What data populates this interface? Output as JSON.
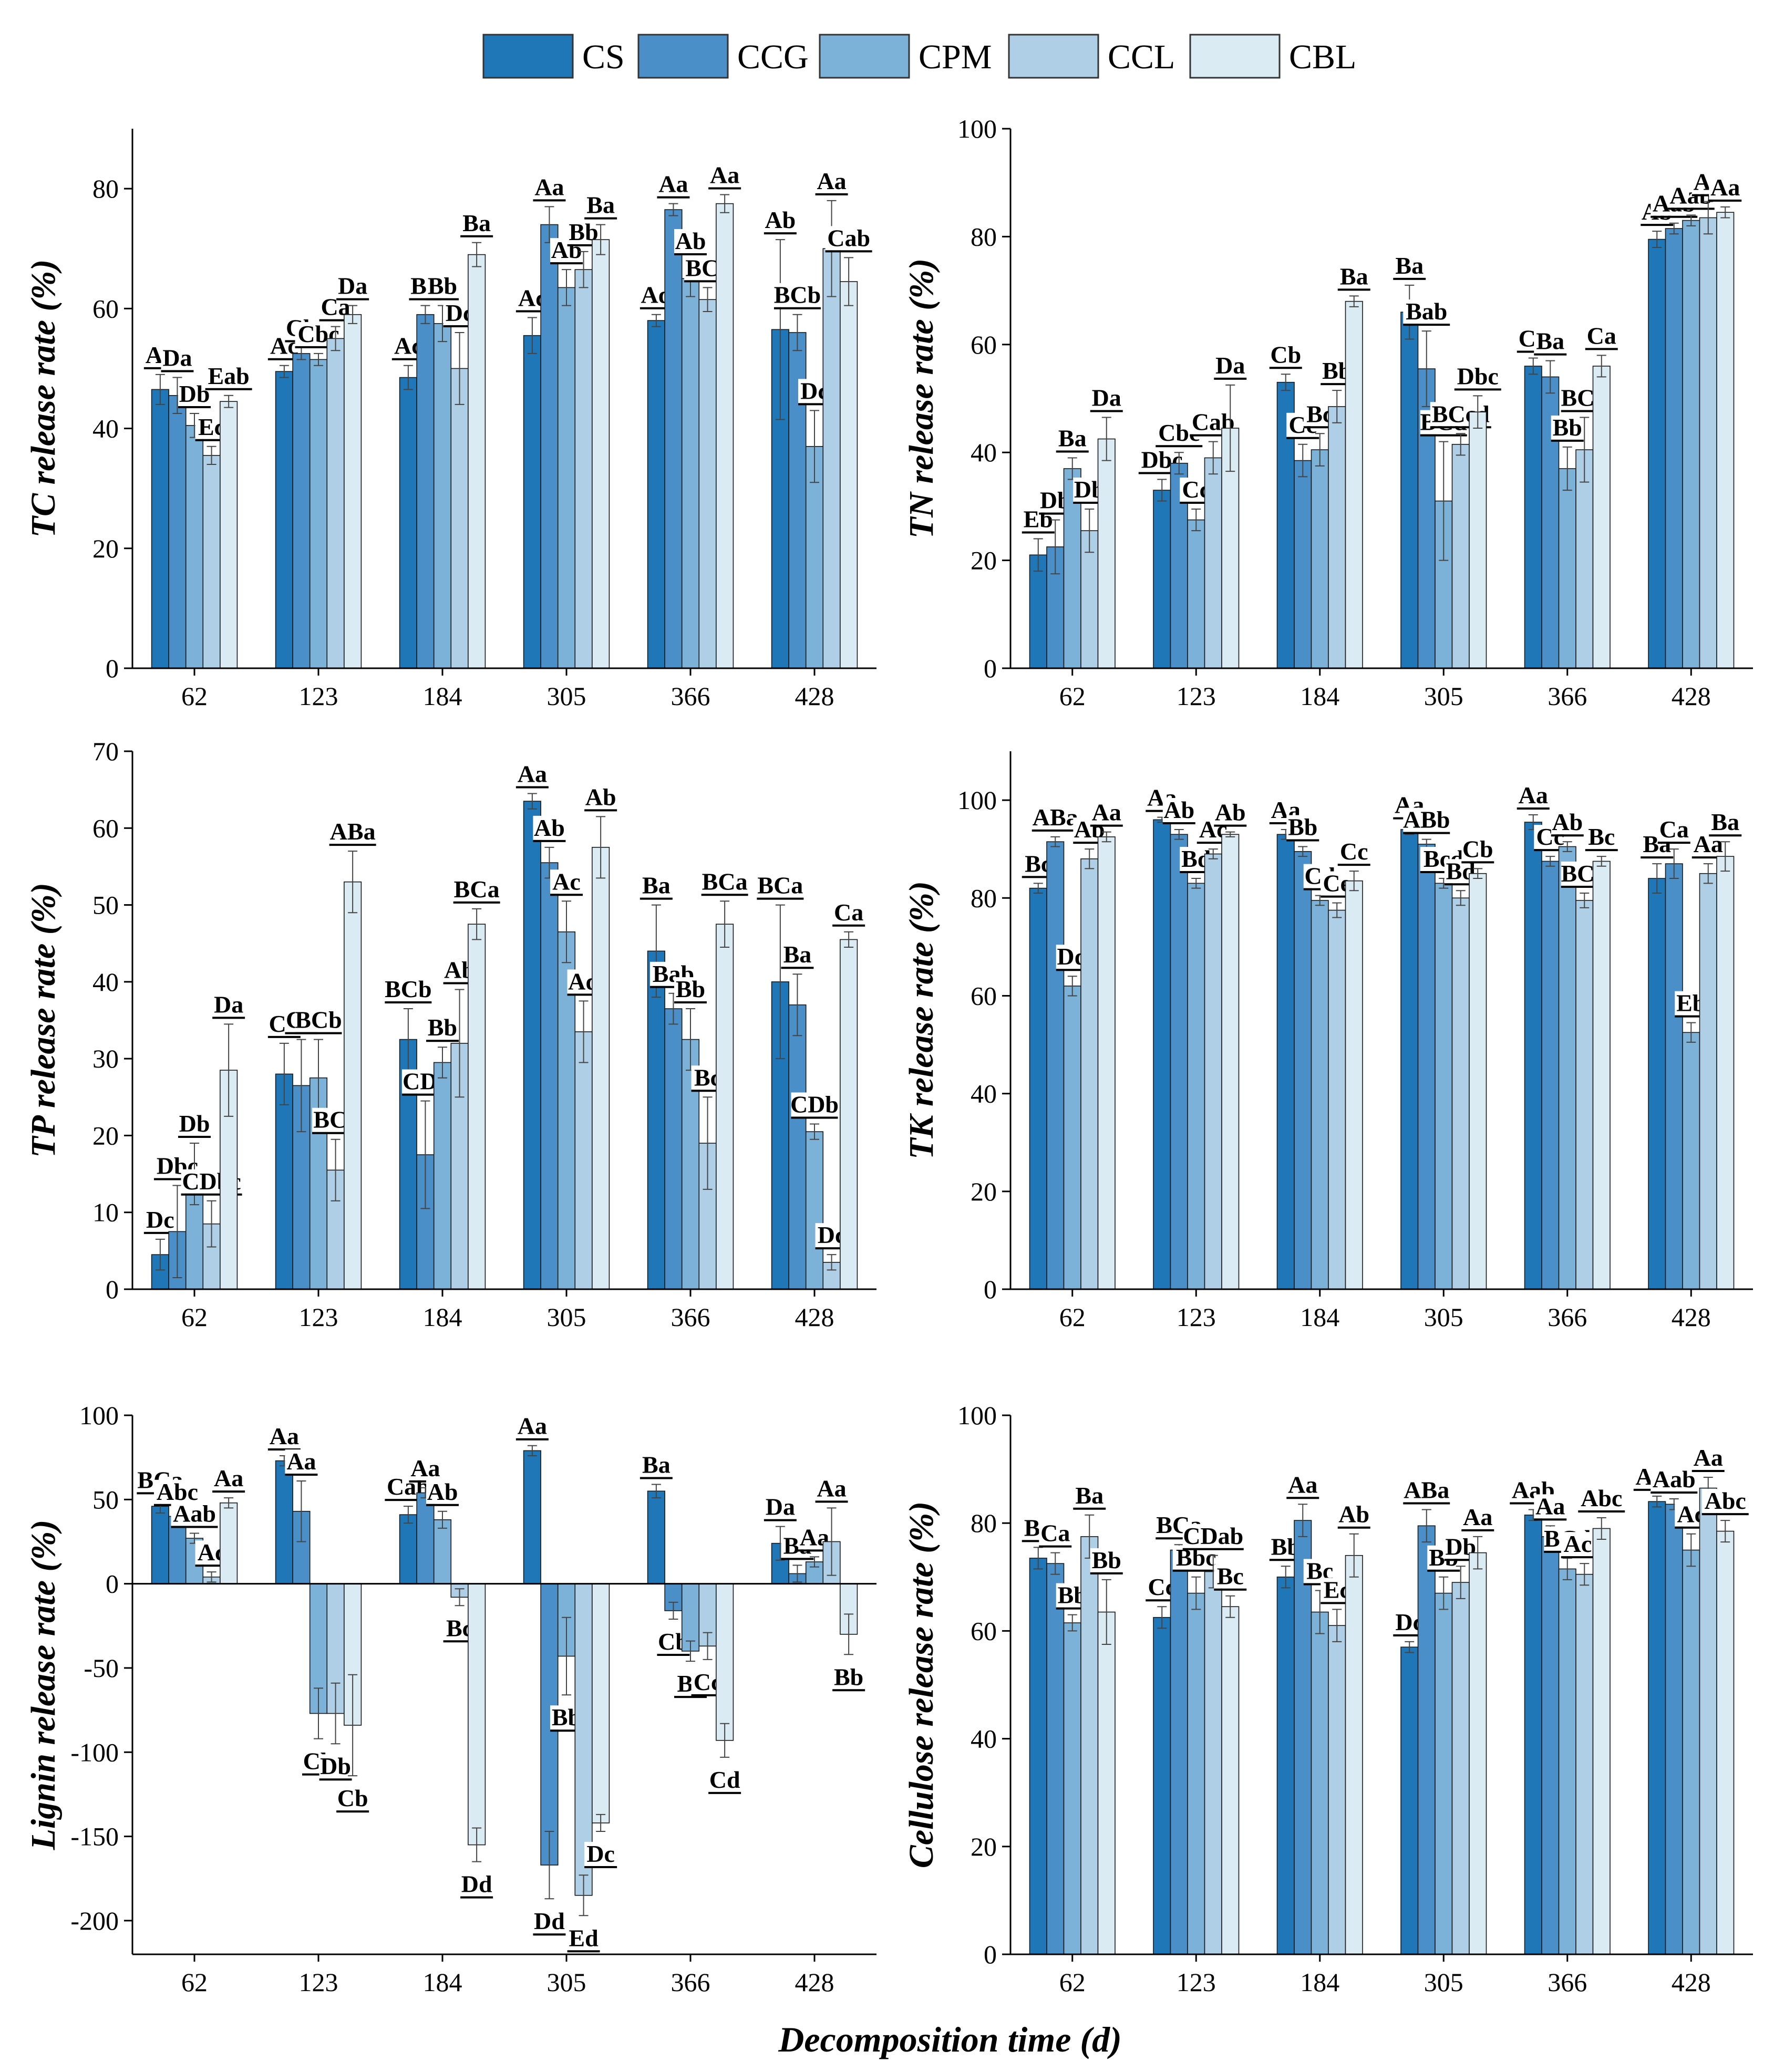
{
  "colors": [
    "#1f77b8",
    "#4b8fc8",
    "#7db2d8",
    "#aecfe6",
    "#dbebf4"
  ],
  "legend": [
    "CS",
    "CCG",
    "CPM",
    "CCL",
    "CBL"
  ],
  "xlabel": "Decomposition time (d)",
  "chart_data": [
    {
      "type": "bar",
      "ylabel": "TC release rate (%)",
      "categories": [
        "62",
        "123",
        "184",
        "305",
        "366",
        "428"
      ],
      "ylim": [
        0,
        90
      ],
      "yticks": [
        0,
        20,
        40,
        60,
        80
      ],
      "series": [
        {
          "name": "CS",
          "values": [
            46.5,
            49.5,
            48.5,
            55.5,
            58,
            56.5
          ],
          "errors": [
            2.5,
            1,
            2,
            3,
            1,
            15
          ],
          "letters": [
            "Aa",
            "Ac",
            "Ac",
            "Ac",
            "Ad",
            "Ab"
          ]
        },
        {
          "name": "CCG",
          "values": [
            45.5,
            52.5,
            59,
            74,
            76.5,
            56
          ],
          "errors": [
            3,
            1,
            1.5,
            3,
            1,
            3
          ],
          "letters": [
            "Da",
            "Cb",
            "Bb",
            "Aa",
            "Aa",
            "BCb"
          ]
        },
        {
          "name": "CPM",
          "values": [
            40.5,
            51.5,
            57.5,
            63.5,
            65,
            37
          ],
          "errors": [
            2,
            1,
            3,
            3,
            3,
            6
          ],
          "letters": [
            "Db",
            "Cbc",
            "Bb",
            "Ab",
            "Ab",
            "Dc"
          ]
        },
        {
          "name": "CCL",
          "values": [
            35.5,
            55,
            50,
            66.5,
            61.5,
            70
          ],
          "errors": [
            1.5,
            2,
            6,
            3,
            2,
            8
          ],
          "letters": [
            "Ec",
            "Ca",
            "Dc",
            "Bb",
            "BCc",
            "Aa"
          ]
        },
        {
          "name": "CBL",
          "values": [
            44.5,
            59,
            69,
            71.5,
            77.5,
            64.5
          ],
          "errors": [
            1,
            1.5,
            2,
            2.5,
            1.5,
            4
          ],
          "letters": [
            "Eab",
            "Da",
            "Ba",
            "Ba",
            "Aa",
            "Cab"
          ]
        }
      ]
    },
    {
      "type": "bar",
      "ylabel": "TN release rate (%)",
      "categories": [
        "62",
        "123",
        "184",
        "305",
        "366",
        "428"
      ],
      "ylim": [
        0,
        100
      ],
      "yticks": [
        0,
        20,
        40,
        60,
        80,
        100
      ],
      "series": [
        {
          "name": "CS",
          "values": [
            21,
            33,
            53,
            66,
            56,
            79.5
          ],
          "errors": [
            3,
            2,
            1.5,
            5,
            1.5,
            1.5
          ],
          "letters": [
            "Eb",
            "Dbc",
            "Cb",
            "Ba",
            "Ca",
            "Ab"
          ]
        },
        {
          "name": "CCG",
          "values": [
            22.5,
            38,
            38.5,
            55.5,
            54,
            81.5
          ],
          "errors": [
            5,
            2,
            3,
            7,
            3,
            1
          ],
          "letters": [
            "Db",
            "Cbc",
            "Cc",
            "Bab",
            "Ba",
            "Aab"
          ]
        },
        {
          "name": "CPM",
          "values": [
            37,
            27.5,
            40.5,
            31,
            37,
            83
          ],
          "errors": [
            2,
            2,
            3,
            11,
            4,
            1
          ],
          "letters": [
            "Ba",
            "Cc",
            "Bc",
            "BCd",
            "Bb",
            "Aab"
          ]
        },
        {
          "name": "CCL",
          "values": [
            25.5,
            39,
            48.5,
            41.5,
            40.5,
            83.5
          ],
          "errors": [
            4,
            3,
            3,
            2,
            6,
            3
          ],
          "letters": [
            "Db",
            "Cab",
            "Bb",
            "BCcd",
            "BCb",
            "Aa"
          ]
        },
        {
          "name": "CBL",
          "values": [
            42.5,
            44.5,
            68,
            47.5,
            56,
            84.5
          ],
          "errors": [
            4,
            8,
            1,
            3,
            2,
            1
          ],
          "letters": [
            "Da",
            "Da",
            "Ba",
            "Dbc",
            "Ca",
            "Aa"
          ]
        }
      ]
    },
    {
      "type": "bar",
      "ylabel": "TP release rate (%)",
      "categories": [
        "62",
        "123",
        "184",
        "305",
        "366",
        "428"
      ],
      "ylim": [
        0,
        70
      ],
      "yticks": [
        0,
        10,
        20,
        30,
        40,
        50,
        60,
        70
      ],
      "series": [
        {
          "name": "CS",
          "values": [
            4.5,
            28,
            32.5,
            63.5,
            44,
            40
          ],
          "errors": [
            2,
            4,
            4,
            1,
            6,
            10
          ],
          "letters": [
            "Dc",
            "Cb",
            "BCb",
            "Aa",
            "Ba",
            "BCa"
          ]
        },
        {
          "name": "CCG",
          "values": [
            7.5,
            26.5,
            17.5,
            55.5,
            36.5,
            37
          ],
          "errors": [
            6,
            6,
            7,
            2,
            2,
            4
          ],
          "letters": [
            "Dbc",
            "Cb",
            "CDc",
            "Ab",
            "Bab",
            "Ba"
          ]
        },
        {
          "name": "CPM",
          "values": [
            15,
            27.5,
            29.5,
            46.5,
            32.5,
            20.5
          ],
          "errors": [
            4,
            5,
            2,
            4,
            4,
            1
          ],
          "letters": [
            "Db",
            "BCb",
            "Bb",
            "Ac",
            "Bb",
            "CDb"
          ]
        },
        {
          "name": "CCL",
          "values": [
            8.5,
            15.5,
            32,
            33.5,
            19,
            3.5
          ],
          "errors": [
            3,
            4,
            7,
            4,
            6,
            1
          ],
          "letters": [
            "CDbc",
            "BCc",
            "Ab",
            "Ad",
            "Bc",
            "Dc"
          ]
        },
        {
          "name": "CBL",
          "values": [
            28.5,
            53,
            47.5,
            57.5,
            47.5,
            45.5
          ],
          "errors": [
            6,
            4,
            2,
            4,
            3,
            1
          ],
          "letters": [
            "Da",
            "ABa",
            "BCa",
            "Ab",
            "BCa",
            "Ca"
          ]
        }
      ]
    },
    {
      "type": "bar",
      "ylabel": "TK release rate (%)",
      "categories": [
        "62",
        "123",
        "184",
        "305",
        "366",
        "428"
      ],
      "ylim": [
        0,
        110
      ],
      "yticks": [
        0,
        20,
        40,
        60,
        80,
        100
      ],
      "series": [
        {
          "name": "CS",
          "values": [
            82,
            96,
            93,
            94,
            95.5,
            84
          ],
          "errors": [
            1,
            0.5,
            1,
            1,
            1.5,
            3
          ],
          "letters": [
            "Bc",
            "Aa",
            "Aa",
            "Aa",
            "Aa",
            "Ba"
          ]
        },
        {
          "name": "CCG",
          "values": [
            91.5,
            93,
            89.5,
            91,
            87.5,
            87
          ],
          "errors": [
            1,
            1,
            1,
            1,
            1,
            3
          ],
          "letters": [
            "ABa",
            "Ab",
            "Bb",
            "ABb",
            "Cc",
            "Ca"
          ]
        },
        {
          "name": "CPM",
          "values": [
            62,
            83,
            79.5,
            83,
            90.5,
            52.5
          ],
          "errors": [
            2,
            1,
            1,
            1,
            1,
            2
          ],
          "letters": [
            "Dd",
            "Bd",
            "Cd",
            "Bcd",
            "Ab",
            "Eb"
          ]
        },
        {
          "name": "CCL",
          "values": [
            88,
            89,
            77.5,
            80,
            79.5,
            85
          ],
          "errors": [
            2,
            1,
            1.5,
            1.5,
            1.5,
            2
          ],
          "letters": [
            "Ab",
            "Ac",
            "Ce",
            "Bd",
            "BCd",
            "Aa"
          ]
        },
        {
          "name": "CBL",
          "values": [
            92.5,
            93,
            83.5,
            85,
            87.5,
            88.5
          ],
          "errors": [
            1,
            0.5,
            2,
            1,
            1,
            3
          ],
          "letters": [
            "Aa",
            "Ab",
            "Cc",
            "Cb",
            "Bc",
            "Ba"
          ]
        }
      ]
    },
    {
      "type": "bar",
      "ylabel": "Lignin release rate (%)",
      "categories": [
        "62",
        "123",
        "184",
        "305",
        "366",
        "428"
      ],
      "ylim": [
        -220,
        100
      ],
      "yticks": [
        -200,
        -150,
        -100,
        -50,
        0,
        50,
        100
      ],
      "series": [
        {
          "name": "CS",
          "values": [
            46,
            73,
            41,
            79,
            55,
            24
          ],
          "errors": [
            4,
            3,
            5,
            3,
            4,
            10
          ],
          "letters": [
            "BCa",
            "Aa",
            "Cab",
            "Aa",
            "Ba",
            "Da"
          ]
        },
        {
          "name": "CCG",
          "values": [
            40,
            43,
            54,
            -167,
            -16,
            6
          ],
          "errors": [
            3,
            18,
            3,
            20,
            5,
            5
          ],
          "letters": [
            "Abc",
            "Aa",
            "Aa",
            "Dd",
            "Cb",
            "Ba"
          ]
        },
        {
          "name": "CPM",
          "values": [
            27,
            -77,
            38,
            -43,
            -40,
            13
          ],
          "errors": [
            3,
            15,
            5,
            23,
            6,
            3
          ],
          "letters": [
            "Aab",
            "Cb",
            "Ab",
            "Bb",
            "Bc",
            "Aa"
          ]
        },
        {
          "name": "CCL",
          "values": [
            4,
            -77,
            -8,
            -185,
            -37,
            25
          ],
          "errors": [
            3,
            18,
            5,
            12,
            8,
            20
          ],
          "letters": [
            "Ac",
            "Db",
            "Bc",
            "Ed",
            "Cc",
            "Aa"
          ]
        },
        {
          "name": "CBL",
          "values": [
            48,
            -84,
            -155,
            -142,
            -93,
            -30
          ],
          "errors": [
            3,
            30,
            10,
            5,
            10,
            12
          ],
          "letters": [
            "Aa",
            "Cb",
            "Dd",
            "Dc",
            "Cd",
            "Bb"
          ]
        }
      ]
    },
    {
      "type": "bar",
      "ylabel": "Cellulose release rate (%)",
      "categories": [
        "62",
        "123",
        "184",
        "305",
        "366",
        "428"
      ],
      "ylim": [
        0,
        100
      ],
      "yticks": [
        0,
        20,
        40,
        60,
        80,
        100
      ],
      "series": [
        {
          "name": "CS",
          "values": [
            73.5,
            62.5,
            70,
            57,
            81.5,
            84
          ],
          "errors": [
            2,
            2,
            2,
            1,
            1,
            1
          ],
          "letters": [
            "Ba",
            "Cc",
            "Bb",
            "Dc",
            "Aab",
            "Aab"
          ]
        },
        {
          "name": "CCG",
          "values": [
            72.5,
            75,
            80.5,
            79.5,
            77.5,
            83.5
          ],
          "errors": [
            2,
            1,
            3,
            3,
            2,
            1
          ],
          "letters": [
            "Ca",
            "BCa",
            "Aa",
            "ABa",
            "Aa",
            "Aab"
          ]
        },
        {
          "name": "CPM",
          "values": [
            61.5,
            67,
            63.5,
            67,
            71.5,
            75
          ],
          "errors": [
            1.5,
            3,
            4,
            3,
            2,
            3
          ],
          "letters": [
            "Bb",
            "Bbc",
            "Bc",
            "Bb",
            "BCd",
            "Ac"
          ]
        },
        {
          "name": "CCL",
          "values": [
            77.5,
            71,
            61,
            69,
            70.5,
            86.5
          ],
          "errors": [
            4,
            3,
            3,
            3,
            2,
            2
          ],
          "letters": [
            "Ba",
            "CDab",
            "Ec",
            "Db",
            "Acd",
            "Aa"
          ]
        },
        {
          "name": "CBL",
          "values": [
            63.5,
            64.5,
            74,
            74.5,
            79,
            78.5
          ],
          "errors": [
            6,
            2,
            4,
            3,
            2,
            2
          ],
          "letters": [
            "Bb",
            "Bc",
            "Ab",
            "Aa",
            "Abc",
            "Abc"
          ]
        }
      ]
    }
  ]
}
